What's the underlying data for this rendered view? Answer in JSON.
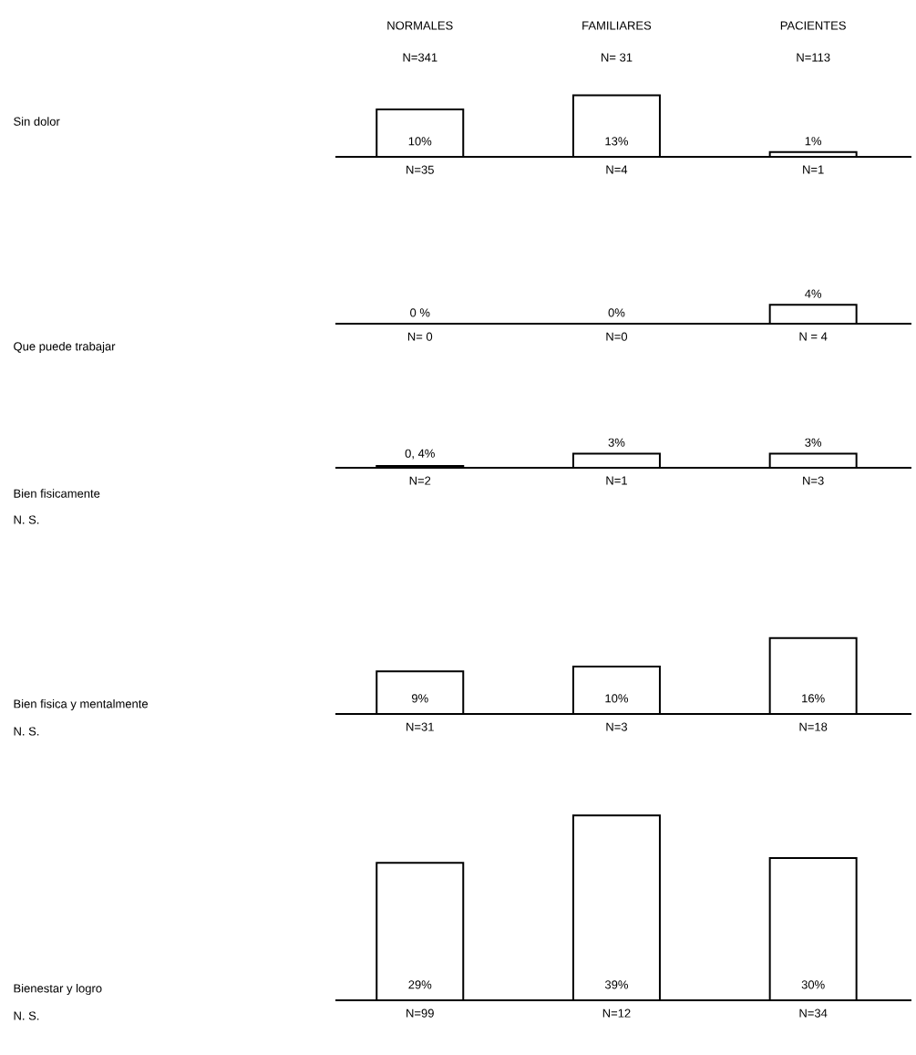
{
  "chart_data": [
    {
      "type": "bar",
      "ylabel": "Sin dolor",
      "categories": [
        "NORMALES",
        "FAMILIARES",
        "PACIENTES"
      ],
      "tick_labels": "x",
      "values": [
        10,
        13,
        1
      ],
      "value_labels": [
        "10%",
        "13%",
        "1%"
      ],
      "annotations": [
        "N=35",
        "N=4",
        "N=1"
      ]
    },
    {
      "type": "other",
      "annotations": [
        "N=341",
        "N= 31",
        "N=113"
      ]
    },
    {
      "type": "bar",
      "ylabel": "Que puede trabajar",
      "categories": [
        null,
        null,
        null
      ],
      "values": [
        0,
        0,
        4
      ],
      "value_labels": [
        "0 %",
        "0%",
        "4%"
      ],
      "annotations": [
        "N= 0",
        "N=0",
        "N = 4"
      ]
    },
    {
      "type": "bar",
      "ylabel": "Bien fisicamente",
      "categories": [
        null,
        null,
        null
      ],
      "values": [
        0.4,
        3,
        3
      ],
      "value_labels": [
        "0, 4%",
        "3%",
        "3%"
      ],
      "annotations": [
        "N=2",
        "N=1",
        "N=3",
        "N. S."
      ]
    },
    {
      "type": "bar",
      "ylabel": "Bien fisica y mentalmente",
      "categories": [
        null,
        null,
        null
      ],
      "values": [
        9,
        10,
        16
      ],
      "value_labels": [
        "9%",
        "10%",
        "16%"
      ],
      "annotations": [
        "N=31",
        "N=3",
        "N=18",
        "N. S."
      ]
    },
    {
      "type": "bar",
      "ylabel": "Bienestar y logro",
      "categories": [
        null,
        null,
        null
      ],
      "values": [
        29,
        39,
        30
      ],
      "value_labels": [
        "29%",
        "39%",
        "30%"
      ],
      "annotations": [
        "N=99",
        "N=12",
        "N=34",
        "N. S."
      ]
    }
  ]
}
